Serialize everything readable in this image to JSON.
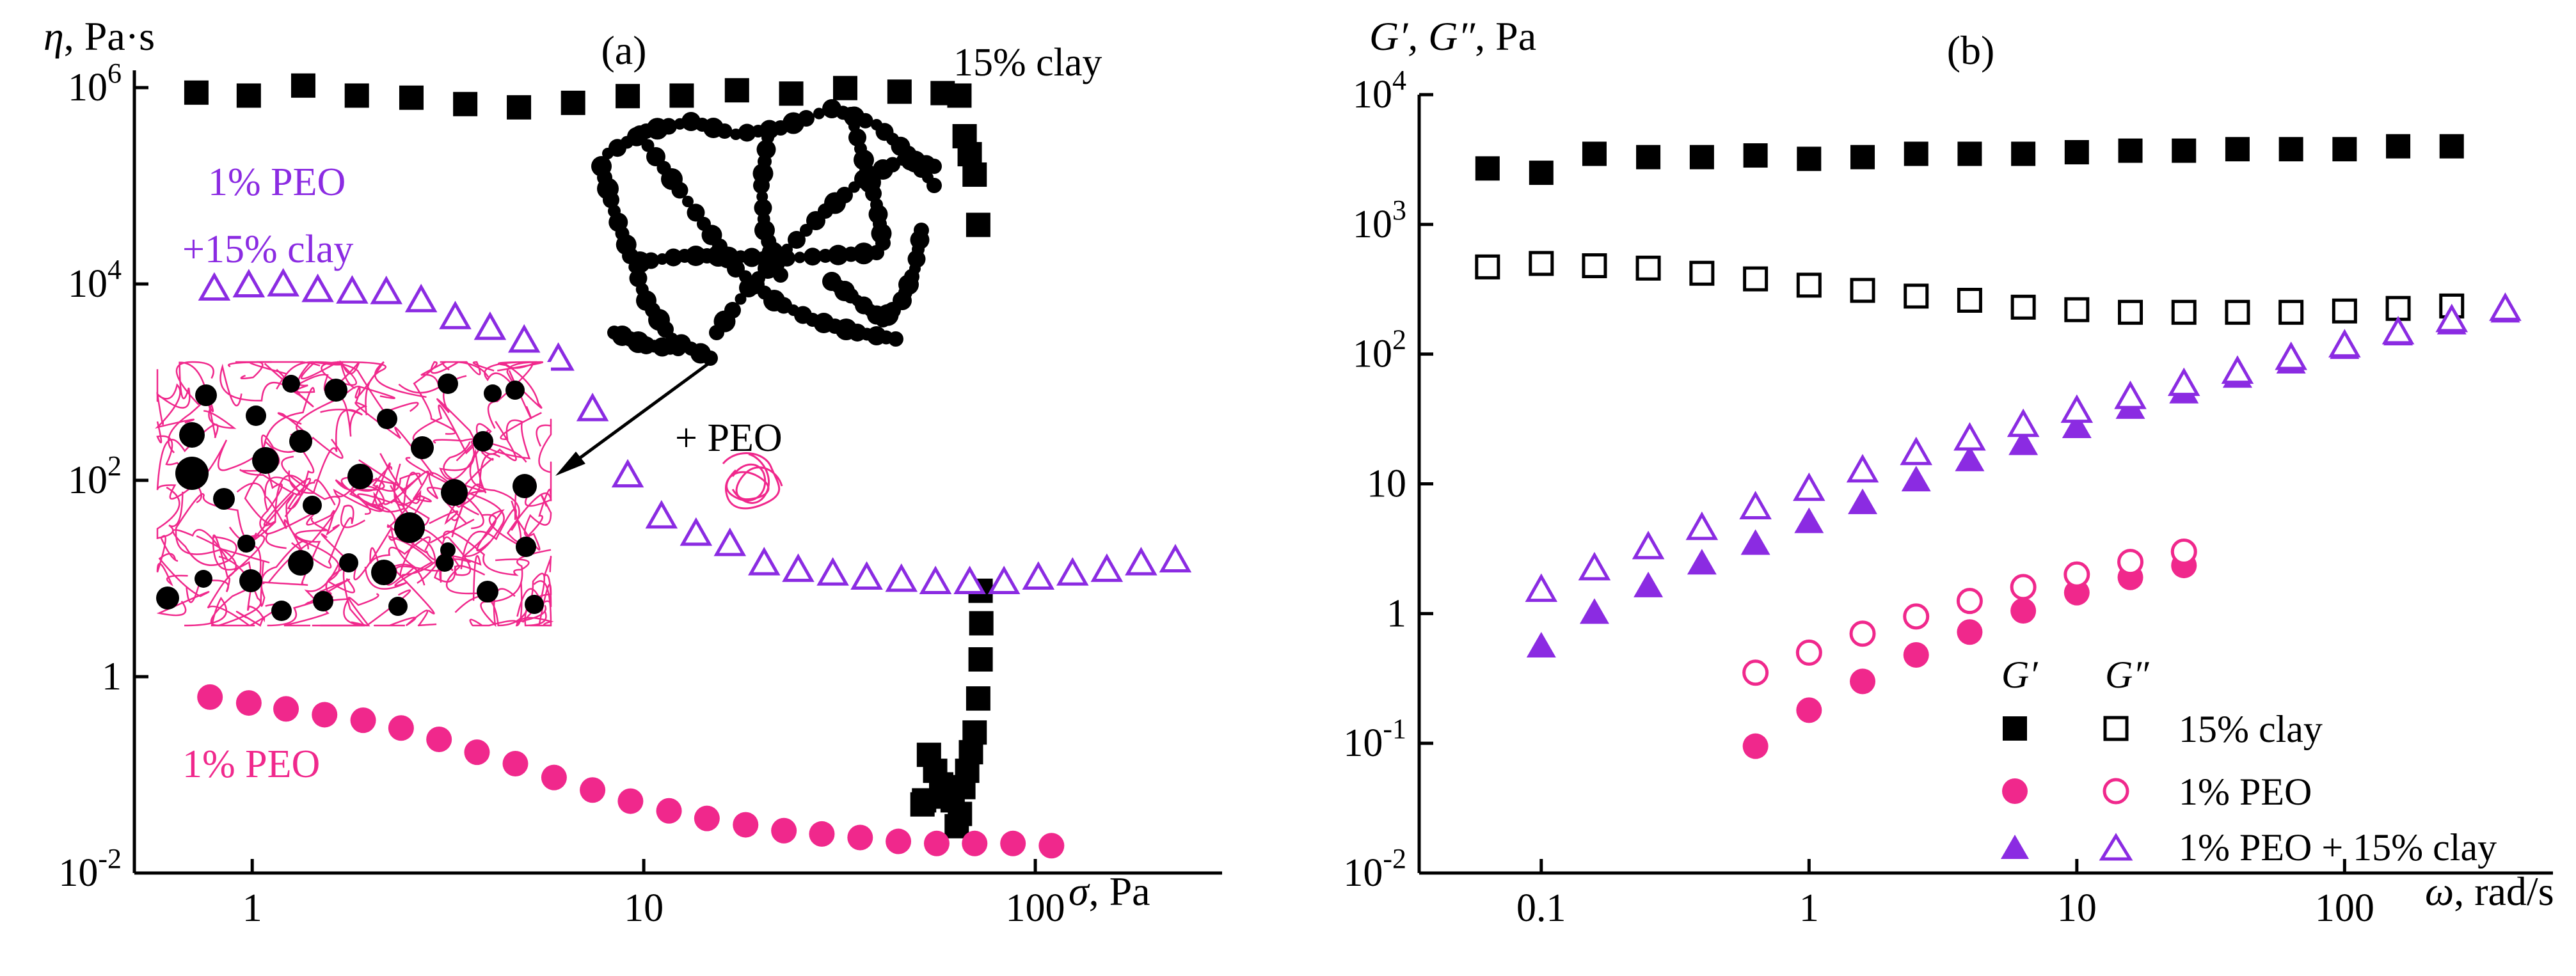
{
  "chart_data": [
    {
      "type": "scatter",
      "panel_label": "(a)",
      "ylabel_sym": "η",
      "ylabel_unit": ", Pa·s",
      "xlabel_sym": "σ",
      "xlabel_unit": ", Pa",
      "xscale": "log",
      "yscale": "log",
      "xlim": [
        0.5,
        300
      ],
      "ylim": [
        0.01,
        1500000
      ],
      "x_ticks": [
        {
          "v": 1,
          "label": "1"
        },
        {
          "v": 10,
          "label": "10"
        },
        {
          "v": 100,
          "label": "100"
        }
      ],
      "y_ticks": [
        {
          "v": 0.01,
          "base": "10",
          "exp": "-2"
        },
        {
          "v": 1,
          "base": "1",
          "exp": ""
        },
        {
          "v": 100,
          "base": "10",
          "exp": "2"
        },
        {
          "v": 10000,
          "base": "10",
          "exp": "4"
        },
        {
          "v": 1000000,
          "base": "10",
          "exp": "6"
        }
      ],
      "series": [
        {
          "name": "15% clay",
          "label_lines": [
            "15% clay"
          ],
          "marker": "square-filled",
          "color": "#000000",
          "x": [
            0.72,
            0.98,
            1.35,
            1.85,
            2.55,
            3.5,
            4.8,
            6.6,
            9.1,
            12.5,
            17.3,
            23.8,
            32.7,
            45,
            58,
            64,
            66,
            68,
            70,
            71.5,
            72.5,
            72.8,
            72.5,
            71.5,
            70,
            68.5,
            67,
            65.5,
            64.2,
            63,
            61.5,
            59.5,
            57.5,
            55.5,
            53.5,
            52,
            51.5
          ],
          "y": [
            890000,
            830000,
            1050000,
            830000,
            790000,
            680000,
            630000,
            700000,
            820000,
            830000,
            940000,
            870000,
            990000,
            910000,
            880000,
            830000,
            320000,
            210000,
            130000,
            40000,
            7.5,
            3.5,
            1.5,
            0.6,
            0.27,
            0.17,
            0.11,
            0.075,
            0.04,
            0.03,
            0.055,
            0.06,
            0.08,
            0.11,
            0.16,
            0.055,
            0.05
          ]
        },
        {
          "name": "1% PEO +15% clay",
          "label_lines": [
            "1% PEO",
            "+15% clay"
          ],
          "marker": "triangle-open",
          "color": "#8B2BE2",
          "x": [
            0.8,
            0.98,
            1.2,
            1.47,
            1.8,
            2.2,
            2.7,
            3.3,
            4.05,
            4.95,
            6.05,
            7.4,
            9.1,
            11.1,
            13.6,
            16.6,
            20.3,
            24.8,
            30.4,
            37.1,
            45.5,
            55.6,
            68,
            83.2,
            101.8,
            124.5,
            152.3,
            186.3,
            227.9
          ],
          "y": [
            8800,
            9500,
            9700,
            8500,
            8200,
            8100,
            6700,
            4500,
            3500,
            2600,
            1700,
            520,
            110,
            42,
            28,
            22,
            14,
            12,
            11,
            10,
            9.5,
            9,
            9,
            9,
            10,
            11,
            12,
            14,
            15
          ]
        },
        {
          "name": "1% PEO",
          "label_lines": [
            "1% PEO"
          ],
          "marker": "circle-filled",
          "color": "#F0288C",
          "x": [
            0.78,
            0.98,
            1.22,
            1.53,
            1.92,
            2.4,
            3.0,
            3.75,
            4.7,
            5.9,
            7.4,
            9.25,
            11.6,
            14.5,
            18.2,
            22.8,
            28.5,
            35.7,
            44.7,
            56,
            70,
            87.7,
            110
          ],
          "y": [
            0.62,
            0.54,
            0.47,
            0.41,
            0.36,
            0.3,
            0.23,
            0.17,
            0.13,
            0.094,
            0.07,
            0.054,
            0.043,
            0.036,
            0.031,
            0.027,
            0.025,
            0.023,
            0.021,
            0.02,
            0.02,
            0.02,
            0.019
          ]
        }
      ],
      "annotations": {
        "add_peo": "+ PEO"
      }
    },
    {
      "type": "scatter",
      "panel_label": "(b)",
      "ylabel_sym": "G′, G″",
      "ylabel_unit": ", Pa",
      "xlabel_sym": "ω",
      "xlabel_unit": ", rad/s",
      "xscale": "log",
      "yscale": "log",
      "xlim": [
        0.035,
        600
      ],
      "ylim": [
        0.01,
        10000
      ],
      "x_ticks": [
        {
          "v": 0.1,
          "label": "0.1"
        },
        {
          "v": 1,
          "label": "1"
        },
        {
          "v": 10,
          "label": "10"
        },
        {
          "v": 100,
          "label": "100"
        }
      ],
      "y_ticks": [
        {
          "v": 0.01,
          "base": "10",
          "exp": "-2"
        },
        {
          "v": 0.1,
          "base": "10",
          "exp": "-1"
        },
        {
          "v": 1,
          "base": "1",
          "exp": ""
        },
        {
          "v": 10,
          "base": "10",
          "exp": ""
        },
        {
          "v": 100,
          "base": "10",
          "exp": "2"
        },
        {
          "v": 1000,
          "base": "10",
          "exp": "3"
        },
        {
          "v": 10000,
          "base": "10",
          "exp": "4"
        }
      ],
      "legend": {
        "position": "bottom-right",
        "col_gp": "G′",
        "col_gpp": "G″",
        "entries": [
          "15% clay",
          "1% PEO",
          "1% PEO + 15% clay"
        ]
      },
      "series": [
        {
          "name": "15% clay G′",
          "marker": "square-filled",
          "color": "#000000",
          "x": [
            0.063,
            0.1,
            0.158,
            0.251,
            0.398,
            0.631,
            1,
            1.585,
            2.512,
            3.981,
            6.31,
            10,
            15.85,
            25.12,
            39.81,
            63.1,
            100,
            158.5,
            251.2
          ],
          "y": [
            2700,
            2500,
            3500,
            3300,
            3300,
            3400,
            3200,
            3300,
            3500,
            3500,
            3500,
            3600,
            3700,
            3700,
            3800,
            3800,
            3800,
            4000,
            4000
          ]
        },
        {
          "name": "15% clay G″",
          "marker": "square-open",
          "color": "#000000",
          "x": [
            0.063,
            0.1,
            0.158,
            0.251,
            0.398,
            0.631,
            1,
            1.585,
            2.512,
            3.981,
            6.31,
            10,
            15.85,
            25.12,
            39.81,
            63.1,
            100,
            158.5,
            251.2
          ],
          "y": [
            470,
            500,
            480,
            460,
            420,
            380,
            340,
            310,
            280,
            260,
            230,
            220,
            210,
            210,
            210,
            210,
            215,
            225,
            235
          ]
        },
        {
          "name": "1% PEO G′",
          "marker": "circle-filled",
          "color": "#F0288C",
          "x": [
            0.631,
            1,
            1.585,
            2.512,
            3.981,
            6.31,
            10,
            15.85,
            25.12
          ],
          "y": [
            0.095,
            0.18,
            0.3,
            0.48,
            0.72,
            1.05,
            1.45,
            1.9,
            2.35
          ]
        },
        {
          "name": "1% PEO G″",
          "marker": "circle-open",
          "color": "#F0288C",
          "x": [
            0.631,
            1,
            1.585,
            2.512,
            3.981,
            6.31,
            10,
            15.85,
            25.12
          ],
          "y": [
            0.35,
            0.5,
            0.7,
            0.95,
            1.25,
            1.6,
            2.0,
            2.5,
            3.0
          ]
        },
        {
          "name": "1% PEO + 15% clay G′",
          "marker": "triangle-filled",
          "color": "#8B2BE2",
          "x": [
            0.1,
            0.158,
            0.251,
            0.398,
            0.631,
            1,
            1.585,
            2.512,
            3.981,
            6.31,
            10,
            15.85,
            25.12,
            39.81,
            63.1,
            100,
            158.5,
            251.2,
            398.1
          ],
          "y": [
            0.55,
            1.0,
            1.6,
            2.4,
            3.4,
            5.0,
            7.0,
            10.5,
            15,
            20,
            27,
            38,
            50,
            66,
            85,
            110,
            140,
            170,
            210
          ]
        },
        {
          "name": "1% PEO + 15% clay G″",
          "marker": "triangle-open",
          "color": "#8B2BE2",
          "x": [
            0.1,
            0.158,
            0.251,
            0.398,
            0.631,
            1,
            1.585,
            2.512,
            3.981,
            6.31,
            10,
            15.85,
            25.12,
            39.81,
            63.1,
            100,
            158.5,
            251.2,
            398.1
          ],
          "y": [
            1.5,
            2.2,
            3.2,
            4.5,
            6.5,
            9,
            12.5,
            17,
            22,
            28,
            36,
            46,
            58,
            72,
            92,
            115,
            145,
            180,
            220
          ]
        }
      ]
    }
  ]
}
